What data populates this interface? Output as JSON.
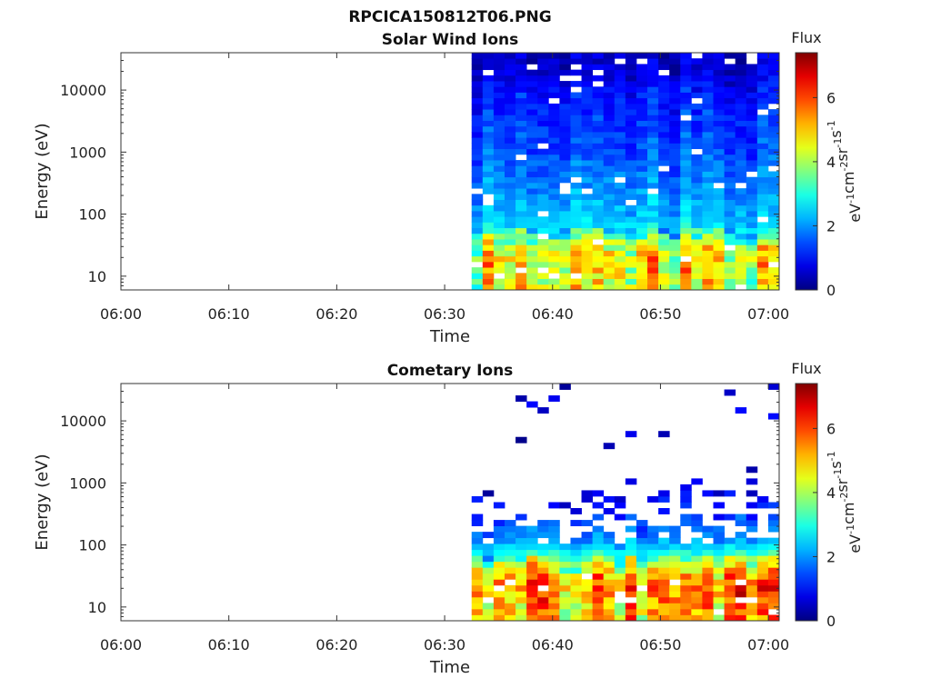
{
  "figure": {
    "title": "RPCICA150812T06.PNG"
  },
  "chart_data": [
    {
      "type": "heatmap",
      "title": "Solar Wind Ions",
      "xlabel": "Time",
      "ylabel": "Energy (eV)",
      "x_ticks": [
        "06:00",
        "06:10",
        "06:20",
        "06:30",
        "06:40",
        "06:50",
        "07:00"
      ],
      "x_range": [
        "06:00",
        "07:01"
      ],
      "y_scale": "log",
      "y_ticks": [
        "10",
        "100",
        "1000",
        "10000"
      ],
      "y_range": [
        6,
        40000
      ],
      "data_start": "06:32.5",
      "colorbar": {
        "label": "Flux",
        "unit_label": "eV-1cm-2sr-1s-1",
        "range": [
          0,
          7.4
        ],
        "ticks": [
          "0",
          "2",
          "4",
          "6"
        ],
        "colormap": "jet"
      },
      "approx_profile": [
        {
          "energy_eV": 10,
          "flux": 4.5
        },
        {
          "energy_eV": 20,
          "flux": 4.8
        },
        {
          "energy_eV": 30,
          "flux": 4.2
        },
        {
          "energy_eV": 60,
          "flux": 2.6
        },
        {
          "energy_eV": 100,
          "flux": 2.3
        },
        {
          "energy_eV": 300,
          "flux": 1.9
        },
        {
          "energy_eV": 1000,
          "flux": 1.5
        },
        {
          "energy_eV": 3000,
          "flux": 1.3
        },
        {
          "energy_eV": 10000,
          "flux": 1.0
        },
        {
          "energy_eV": 30000,
          "flux": 0.5
        }
      ]
    },
    {
      "type": "heatmap",
      "title": "Cometary Ions",
      "xlabel": "Time",
      "ylabel": "Energy (eV)",
      "x_ticks": [
        "06:00",
        "06:10",
        "06:20",
        "06:30",
        "06:40",
        "06:50",
        "07:00"
      ],
      "x_range": [
        "06:00",
        "07:01"
      ],
      "y_scale": "log",
      "y_ticks": [
        "10",
        "100",
        "1000",
        "10000"
      ],
      "y_range": [
        6,
        40000
      ],
      "data_start": "06:32.5",
      "colorbar": {
        "label": "Flux",
        "unit_label": "eV-1cm-2sr-1s-1",
        "range": [
          0,
          7.4
        ],
        "ticks": [
          "0",
          "2",
          "4",
          "6"
        ],
        "colormap": "jet"
      },
      "approx_profile": [
        {
          "energy_eV": 10,
          "flux": 5.0
        },
        {
          "energy_eV": 20,
          "flux": 5.5
        },
        {
          "energy_eV": 30,
          "flux": 5.2
        },
        {
          "energy_eV": 60,
          "flux": 3.5
        },
        {
          "energy_eV": 100,
          "flux": 2.2
        },
        {
          "energy_eV": 300,
          "flux": 1.2
        },
        {
          "energy_eV": 1000,
          "flux": 0.6
        },
        {
          "energy_eV": 3000,
          "flux": 0.4
        }
      ]
    }
  ]
}
